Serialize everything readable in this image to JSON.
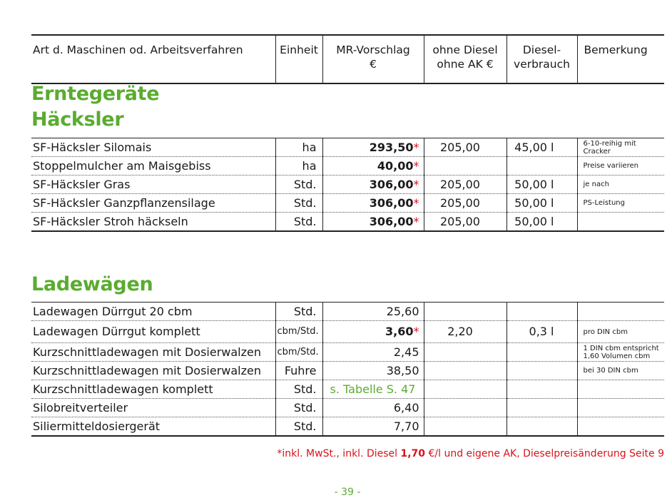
{
  "header": {
    "col_machine": "Art d. Maschinen od. Arbeitsverfahren",
    "col_unit": "Einheit",
    "col_mr_line1": "MR-Vorschlag",
    "col_mr_line2": "€",
    "col_no_diesel_line1": "ohne Diesel",
    "col_no_diesel_line2": "ohne AK €",
    "col_diesel_line1": "Diesel-",
    "col_diesel_line2": "verbrauch",
    "col_remark": "Bemerkung"
  },
  "section1": {
    "title_line1": "Erntegeräte",
    "title_line2": "Häcksler",
    "rows": [
      {
        "name": "SF-Häcksler Silomais",
        "unit": "ha",
        "mr": "293,50",
        "star": "*",
        "no_diesel": "205,00",
        "diesel": "45,00 l",
        "remark": "6-10-reihig mit Cracker"
      },
      {
        "name": "Stoppelmulcher am Maisgebiss",
        "unit": "ha",
        "mr": "40,00",
        "star": "*",
        "no_diesel": "",
        "diesel": "",
        "remark": "Preise variieren"
      },
      {
        "name": "SF-Häcksler Gras",
        "unit": "Std.",
        "mr": "306,00",
        "star": "*",
        "no_diesel": "205,00",
        "diesel": "50,00 l",
        "remark": "je nach"
      },
      {
        "name": "SF-Häcksler Ganzpflanzensilage",
        "unit": "Std.",
        "mr": "306,00",
        "star": "*",
        "no_diesel": "205,00",
        "diesel": "50,00 l",
        "remark": "PS-Leistung"
      },
      {
        "name": "SF-Häcksler Stroh häckseln",
        "unit": "Std.",
        "mr": "306,00",
        "star": "*",
        "no_diesel": "205,00",
        "diesel": "50,00 l",
        "remark": ""
      }
    ]
  },
  "section2": {
    "title": "Ladewägen",
    "rows": [
      {
        "name": "Ladewagen Dürrgut 20 cbm",
        "unit": "Std.",
        "mr": "25,60",
        "bold": false,
        "star": "",
        "no_diesel": "",
        "diesel": "",
        "remark": ""
      },
      {
        "name": "Ladewagen Dürrgut komplett",
        "unit": "cbm/Std.",
        "mr": "3,60",
        "bold": true,
        "star": "*",
        "no_diesel": "2,20",
        "diesel": "0,3 l",
        "remark": "pro DIN cbm"
      },
      {
        "name": "Kurzschnittladewagen mit Dosierwalzen",
        "unit": "cbm/Std.",
        "mr": "2,45",
        "bold": false,
        "star": "",
        "no_diesel": "",
        "diesel": "",
        "remark": "1 DIN cbm entspricht 1,60 Volumen cbm"
      },
      {
        "name": "Kurzschnittladewagen mit Dosierwalzen",
        "unit": "Fuhre",
        "mr": "38,50",
        "bold": false,
        "star": "",
        "no_diesel": "",
        "diesel": "",
        "remark": "bei 30 DIN cbm"
      },
      {
        "name": "Kurzschnittladewagen komplett",
        "unit": "Std.",
        "mr": "s. Tabelle S. 47",
        "ref": true,
        "bold": false,
        "star": "",
        "no_diesel": "",
        "diesel": "",
        "remark": ""
      },
      {
        "name": "Silobreitverteiler",
        "unit": "Std.",
        "mr": "6,40",
        "bold": false,
        "star": "",
        "no_diesel": "",
        "diesel": "",
        "remark": ""
      },
      {
        "name": "Siliermitteldosiergerät",
        "unit": "Std.",
        "mr": "7,70",
        "bold": false,
        "star": "",
        "no_diesel": "",
        "diesel": "",
        "remark": ""
      }
    ]
  },
  "footnote": {
    "prefix": "*inkl. MwSt., inkl. Diesel ",
    "price": "1,70",
    "suffix": " €/l und eigene AK, Dieselpreisänderung Seite 9"
  },
  "page_number": "- 39 -",
  "colors": {
    "accent_green": "#5aac2f",
    "accent_red": "#d4141c"
  }
}
